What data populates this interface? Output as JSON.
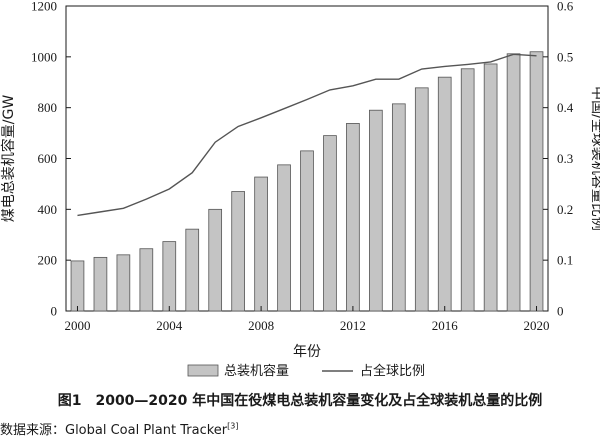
{
  "chart_data": {
    "type": "bar+line",
    "caption": "图1　2000—2020 年中国在役煤电总装机容量变化及占全球装机总量的比例",
    "xlabel": "年份",
    "ylabel_left": "煤电总装机容量/GW",
    "ylabel_right": "中国/全球装机容量比例",
    "ylim_left": [
      0,
      1200
    ],
    "ylim_right": [
      0,
      0.6
    ],
    "yticks_left": [
      "0",
      "200",
      "400",
      "600",
      "800",
      "1000",
      "1200"
    ],
    "yticks_right": [
      "0",
      "0.1",
      "0.2",
      "0.3",
      "0.4",
      "0.5",
      "0.6"
    ],
    "xticks": [
      "2000",
      "2004",
      "2008",
      "2012",
      "2016",
      "2020"
    ],
    "categories": [
      2000,
      2001,
      2002,
      2003,
      2004,
      2005,
      2006,
      2007,
      2008,
      2009,
      2010,
      2011,
      2012,
      2013,
      2014,
      2015,
      2016,
      2017,
      2018,
      2019,
      2020
    ],
    "series": [
      {
        "name": "总装机容量",
        "kind": "bar",
        "axis": "left",
        "color": "#c4c4c4",
        "values": [
          197,
          211,
          221,
          245,
          273,
          322,
          400,
          470,
          527,
          575,
          630,
          690,
          738,
          790,
          815,
          878,
          920,
          953,
          972,
          1012,
          1020
        ]
      },
      {
        "name": "占全球比例",
        "kind": "line",
        "axis": "right",
        "color": "#555555",
        "values": [
          0.188,
          0.195,
          0.202,
          0.22,
          0.24,
          0.272,
          0.332,
          0.363,
          0.38,
          0.398,
          0.416,
          0.435,
          0.443,
          0.456,
          0.456,
          0.476,
          0.481,
          0.485,
          0.49,
          0.505,
          0.502
        ]
      }
    ],
    "legend": "bottom",
    "grid": false
  },
  "source": {
    "text": "数据来源：Global Coal Plant Tracker",
    "ref": "[3]"
  }
}
